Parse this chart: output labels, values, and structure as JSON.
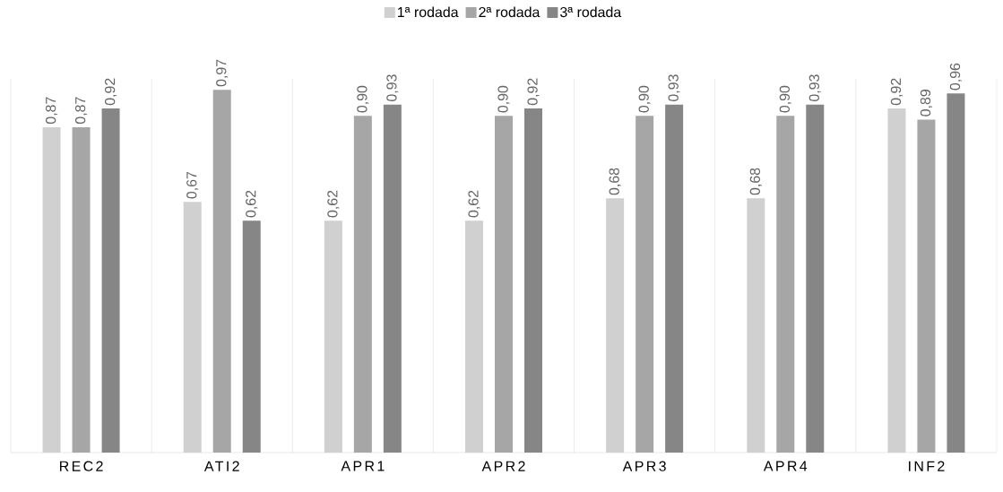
{
  "chart_data": {
    "type": "bar",
    "categories": [
      "REC2",
      "ATI2",
      "APR1",
      "APR2",
      "APR3",
      "APR4",
      "INF2"
    ],
    "series": [
      {
        "name": "1ª rodada",
        "color": "#d0d0d0",
        "values": [
          0.87,
          0.67,
          0.62,
          0.62,
          0.68,
          0.68,
          0.92
        ],
        "value_labels": [
          "0,87",
          "0,67",
          "0,62",
          "0,62",
          "0,68",
          "0,68",
          "0,92"
        ]
      },
      {
        "name": "2ª rodada",
        "color": "#a6a6a6",
        "values": [
          0.87,
          0.97,
          0.9,
          0.9,
          0.9,
          0.9,
          0.89
        ],
        "value_labels": [
          "0,87",
          "0,97",
          "0,90",
          "0,90",
          "0,90",
          "0,90",
          "0,89"
        ]
      },
      {
        "name": "3ª rodada",
        "color": "#868686",
        "values": [
          0.92,
          0.62,
          0.93,
          0.92,
          0.93,
          0.93,
          0.96
        ],
        "value_labels": [
          "0,92",
          "0,62",
          "0,93",
          "0,92",
          "0,93",
          "0,93",
          "0,96"
        ]
      }
    ],
    "grid": "x",
    "legend": "top"
  }
}
